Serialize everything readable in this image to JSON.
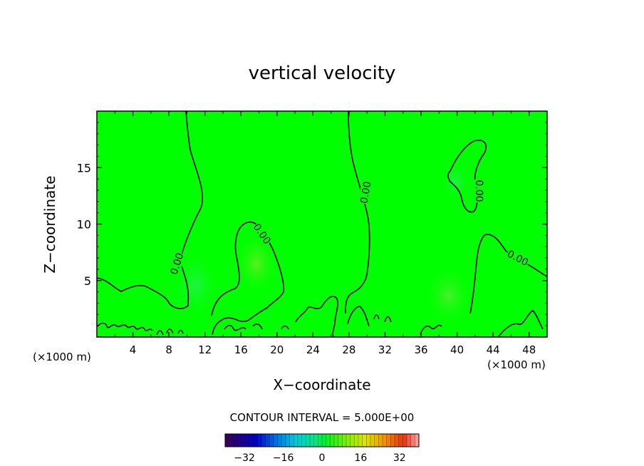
{
  "chart_data": {
    "type": "heatmap",
    "title": "vertical velocity",
    "xlabel": "X−coordinate",
    "ylabel": "Z−coordinate",
    "x_unit_label": "(×1000 m)",
    "xlim": [
      0,
      50
    ],
    "ylim": [
      0,
      20
    ],
    "x_ticks": [
      4,
      8,
      12,
      16,
      20,
      24,
      28,
      32,
      36,
      40,
      44,
      48
    ],
    "y_ticks": [
      5,
      10,
      15
    ],
    "field_value_estimate": 0,
    "contour_label": "0.00",
    "contour_interval_text": "CONTOUR INTERVAL = 5.000E+00",
    "colorbar": {
      "ticks": [
        -32,
        -16,
        0,
        16,
        32
      ],
      "tick_labels": [
        "−32",
        "−16",
        "0",
        "16",
        "32"
      ],
      "range": [
        -40,
        40
      ]
    },
    "colors": {
      "field": "#00ff00",
      "contour": "#000000"
    }
  }
}
